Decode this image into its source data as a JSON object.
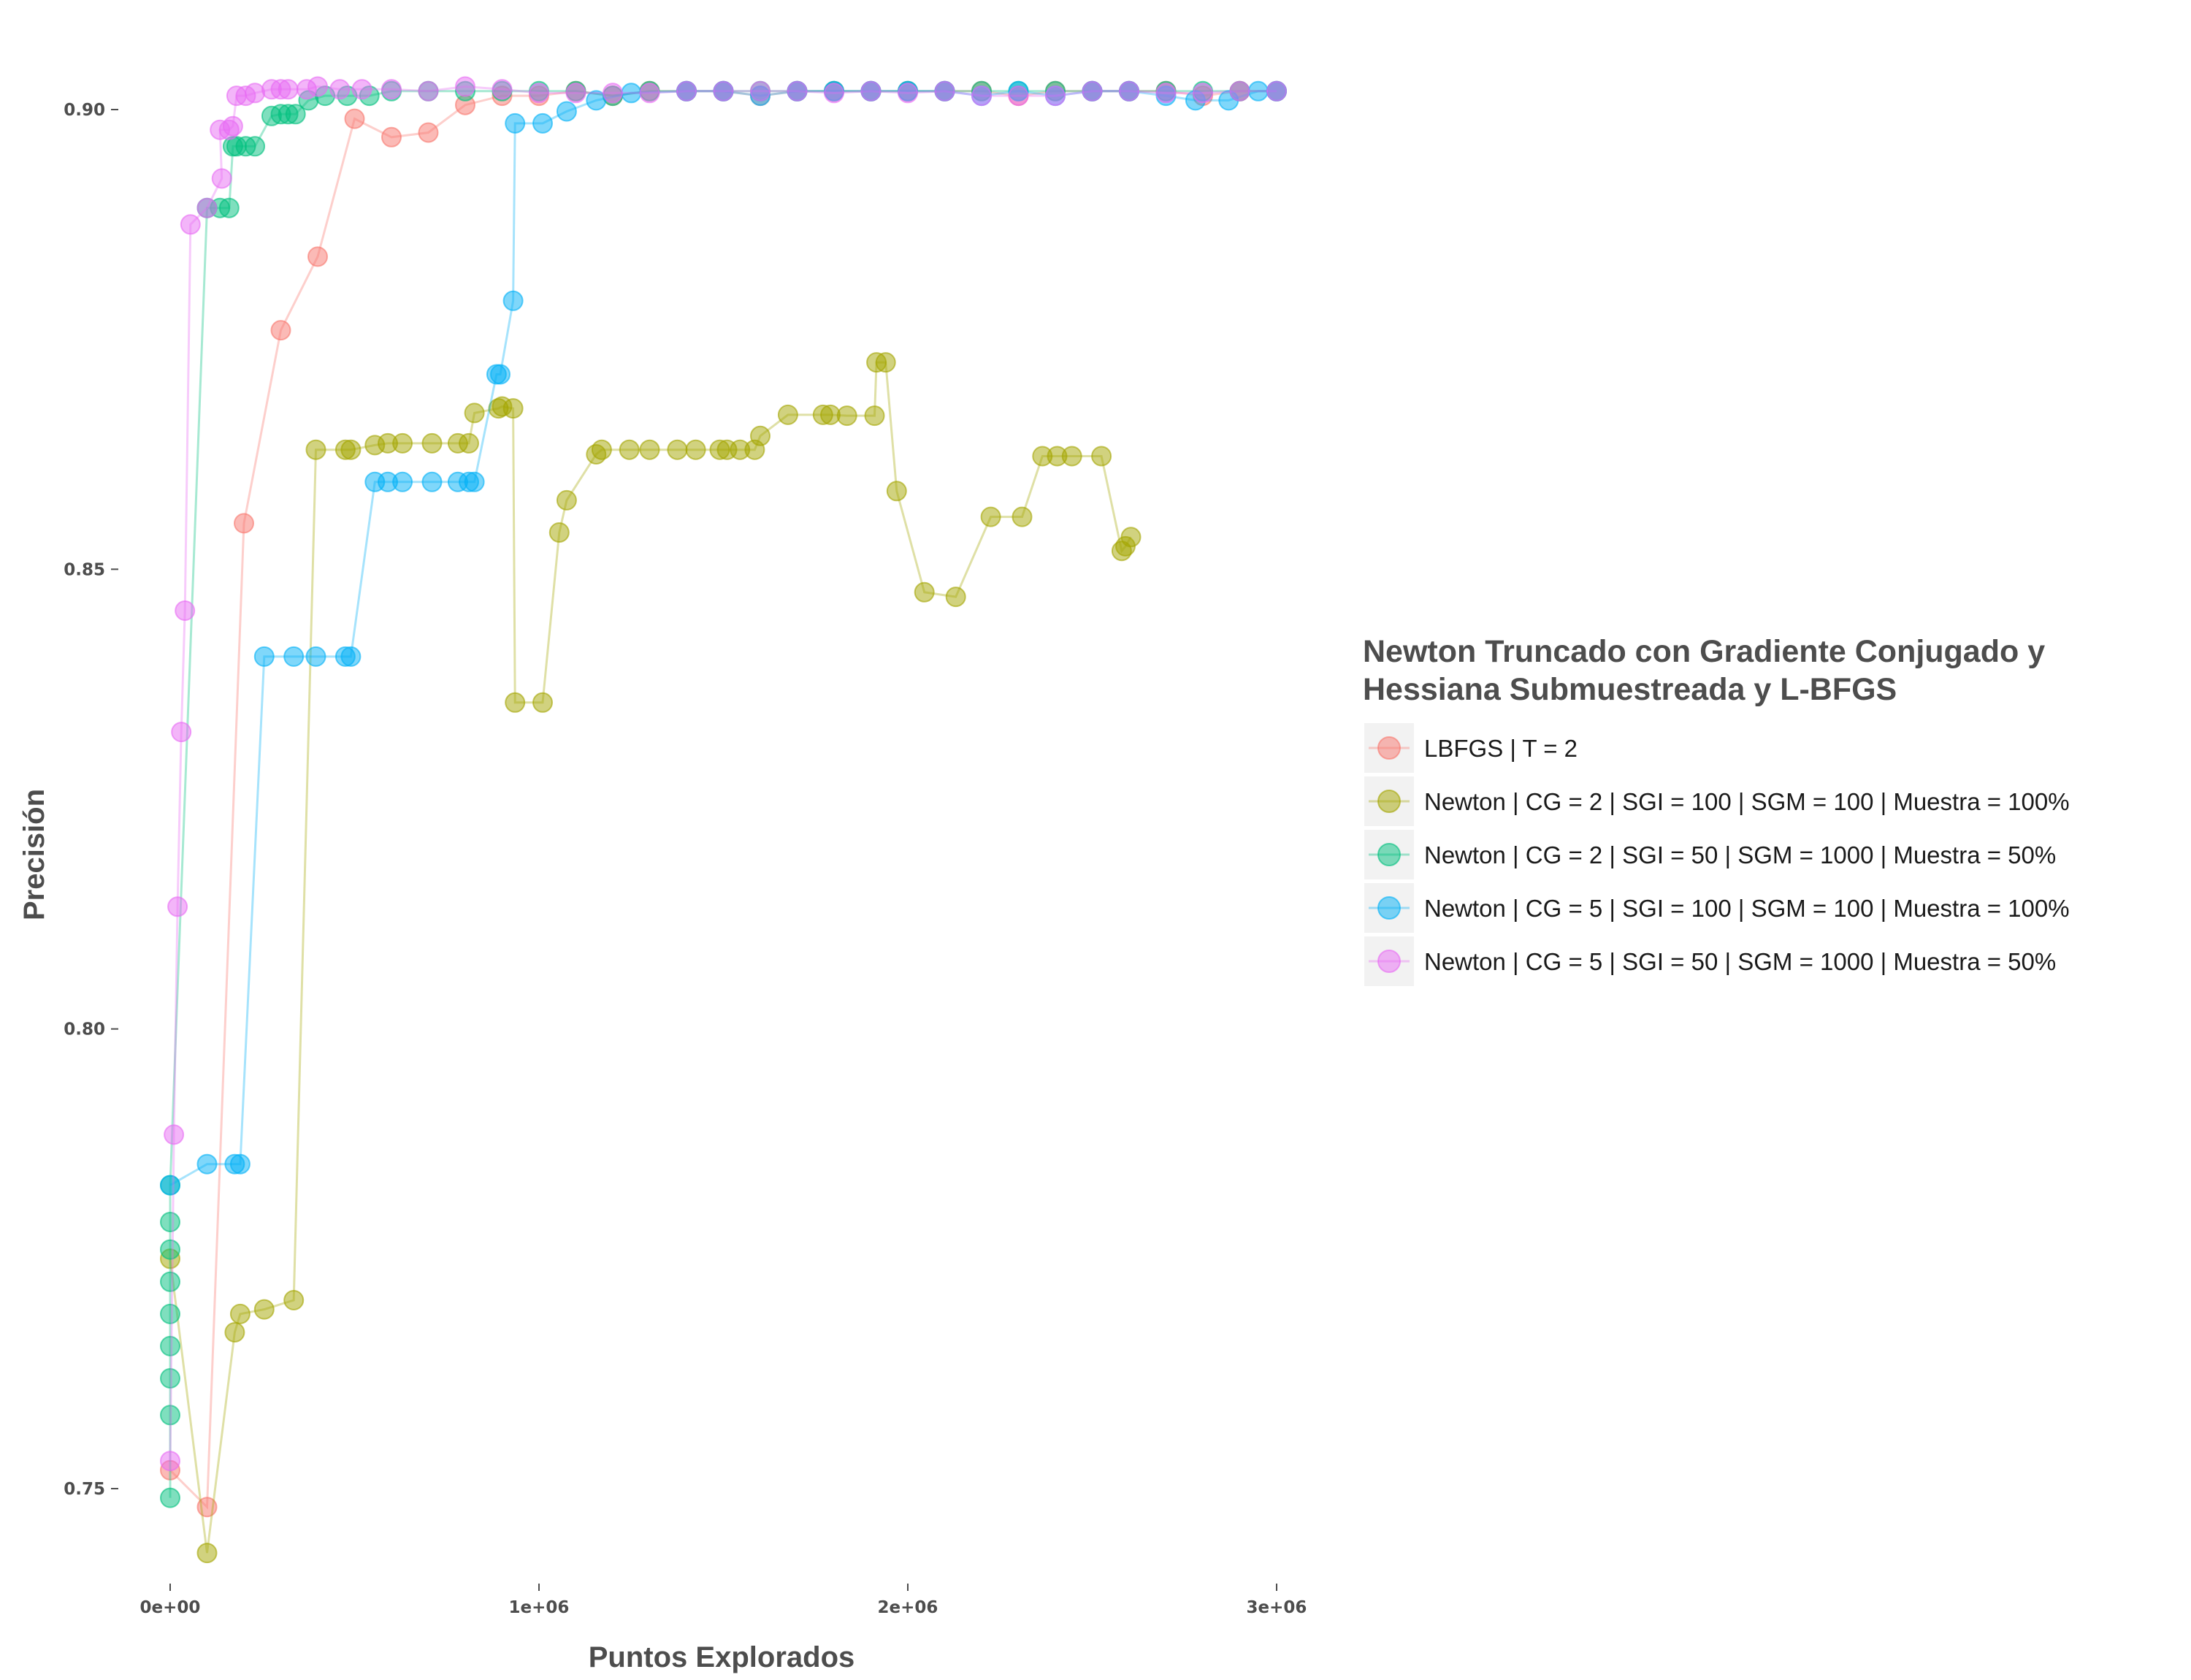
{
  "chart_data": {
    "type": "line",
    "title": "",
    "xlabel": "Puntos Explorados",
    "ylabel": "Precisión",
    "xlim": [
      -120000,
      3120000
    ],
    "ylim": [
      0.737,
      0.911
    ],
    "x_ticks": [
      {
        "value": 0,
        "label": "0e+00"
      },
      {
        "value": 1000000,
        "label": "1e+06"
      },
      {
        "value": 2000000,
        "label": "2e+06"
      },
      {
        "value": 3000000,
        "label": "3e+06"
      }
    ],
    "y_ticks": [
      {
        "value": 0.75,
        "label": "0.75"
      },
      {
        "value": 0.8,
        "label": "0.80"
      },
      {
        "value": 0.85,
        "label": "0.85"
      },
      {
        "value": 0.9,
        "label": "0.90"
      }
    ],
    "grid": false,
    "legend": {
      "title_lines": [
        "Newton Truncado con Gradiente Conjugado y",
        "Hessiana Submuestreada y L-BFGS"
      ],
      "position": "right"
    },
    "series": [
      {
        "name": "LBFGS  | T = 2",
        "color": "#F8766D",
        "points": [
          [
            0,
            0.752
          ],
          [
            100000,
            0.748
          ],
          [
            200000,
            0.855
          ],
          [
            300000,
            0.876
          ],
          [
            400000,
            0.884
          ],
          [
            500000,
            0.899
          ],
          [
            600000,
            0.897
          ],
          [
            700000,
            0.8975
          ],
          [
            800000,
            0.9005
          ],
          [
            900000,
            0.9015
          ],
          [
            1000000,
            0.9015
          ],
          [
            1100000,
            0.902
          ],
          [
            1200000,
            0.9015
          ],
          [
            1300000,
            0.902
          ],
          [
            1400000,
            0.902
          ],
          [
            1500000,
            0.902
          ],
          [
            1600000,
            0.9015
          ],
          [
            1700000,
            0.902
          ],
          [
            1800000,
            0.902
          ],
          [
            1900000,
            0.902
          ],
          [
            2000000,
            0.902
          ],
          [
            2100000,
            0.902
          ],
          [
            2200000,
            0.902
          ],
          [
            2300000,
            0.9015
          ],
          [
            2400000,
            0.902
          ],
          [
            2500000,
            0.902
          ],
          [
            2600000,
            0.902
          ],
          [
            2700000,
            0.902
          ],
          [
            2800000,
            0.9015
          ],
          [
            2900000,
            0.902
          ],
          [
            3000000,
            0.902
          ]
        ]
      },
      {
        "name": "Newton | CG = 2 | SGI = 100 | SGM = 100  | Muestra = 100%",
        "color": "#A3A500",
        "points": [
          [
            0,
            0.775
          ],
          [
            100000,
            0.743
          ],
          [
            175000,
            0.767
          ],
          [
            190000,
            0.769
          ],
          [
            255000,
            0.7695
          ],
          [
            335000,
            0.7705
          ],
          [
            395000,
            0.863
          ],
          [
            475000,
            0.863
          ],
          [
            490000,
            0.863
          ],
          [
            555000,
            0.8635
          ],
          [
            590000,
            0.8637
          ],
          [
            630000,
            0.8637
          ],
          [
            710000,
            0.8637
          ],
          [
            780000,
            0.8637
          ],
          [
            810000,
            0.8637
          ],
          [
            825000,
            0.867
          ],
          [
            890000,
            0.8675
          ],
          [
            900000,
            0.8677
          ],
          [
            930000,
            0.8675
          ],
          [
            935000,
            0.8355
          ],
          [
            1010000,
            0.8355
          ],
          [
            1055000,
            0.854
          ],
          [
            1075000,
            0.8575
          ],
          [
            1155000,
            0.8625
          ],
          [
            1170000,
            0.863
          ],
          [
            1245000,
            0.863
          ],
          [
            1300000,
            0.863
          ],
          [
            1375000,
            0.863
          ],
          [
            1425000,
            0.863
          ],
          [
            1490000,
            0.863
          ],
          [
            1510000,
            0.863
          ],
          [
            1545000,
            0.863
          ],
          [
            1585000,
            0.863
          ],
          [
            1600000,
            0.8645
          ],
          [
            1675000,
            0.8668
          ],
          [
            1770000,
            0.8668
          ],
          [
            1790000,
            0.8668
          ],
          [
            1835000,
            0.8667
          ],
          [
            1910000,
            0.8667
          ],
          [
            1915000,
            0.8725
          ],
          [
            1940000,
            0.8725
          ],
          [
            1970000,
            0.8585
          ],
          [
            2045000,
            0.8475
          ],
          [
            2130000,
            0.847
          ],
          [
            2225000,
            0.8557
          ],
          [
            2310000,
            0.8557
          ],
          [
            2365000,
            0.8623
          ],
          [
            2405000,
            0.8623
          ],
          [
            2445000,
            0.8623
          ],
          [
            2525000,
            0.8623
          ],
          [
            2580000,
            0.852
          ],
          [
            2590000,
            0.8525
          ],
          [
            2605000,
            0.8535
          ]
        ]
      },
      {
        "name": "Newton | CG = 2 | SGI = 50  | SGM = 1000 | Muestra = 50%",
        "color": "#00BF7D",
        "points": [
          [
            0,
            0.749
          ],
          [
            0,
            0.758
          ],
          [
            0,
            0.762
          ],
          [
            0,
            0.7655
          ],
          [
            0,
            0.769
          ],
          [
            0,
            0.7725
          ],
          [
            0,
            0.776
          ],
          [
            0,
            0.779
          ],
          [
            0,
            0.783
          ],
          [
            100000,
            0.8893
          ],
          [
            135000,
            0.8893
          ],
          [
            160000,
            0.8893
          ],
          [
            170000,
            0.896
          ],
          [
            180000,
            0.896
          ],
          [
            205000,
            0.896
          ],
          [
            230000,
            0.896
          ],
          [
            275000,
            0.8993
          ],
          [
            300000,
            0.8995
          ],
          [
            320000,
            0.8995
          ],
          [
            340000,
            0.8995
          ],
          [
            375000,
            0.901
          ],
          [
            420000,
            0.9015
          ],
          [
            480000,
            0.9015
          ],
          [
            540000,
            0.9015
          ],
          [
            600000,
            0.902
          ],
          [
            700000,
            0.902
          ],
          [
            800000,
            0.902
          ],
          [
            900000,
            0.902
          ],
          [
            1000000,
            0.902
          ],
          [
            1100000,
            0.902
          ],
          [
            1200000,
            0.9015
          ],
          [
            1300000,
            0.902
          ],
          [
            1400000,
            0.902
          ],
          [
            1500000,
            0.902
          ],
          [
            1600000,
            0.902
          ],
          [
            1700000,
            0.902
          ],
          [
            1800000,
            0.902
          ],
          [
            1900000,
            0.902
          ],
          [
            2000000,
            0.902
          ],
          [
            2100000,
            0.902
          ],
          [
            2200000,
            0.902
          ],
          [
            2300000,
            0.902
          ],
          [
            2400000,
            0.902
          ],
          [
            2500000,
            0.902
          ],
          [
            2600000,
            0.902
          ],
          [
            2700000,
            0.902
          ],
          [
            2800000,
            0.902
          ],
          [
            2900000,
            0.902
          ],
          [
            3000000,
            0.902
          ]
        ]
      },
      {
        "name": "Newton | CG = 5 | SGI = 100 | SGM = 100  | Muestra = 100%",
        "color": "#00B0F6",
        "points": [
          [
            0,
            0.783
          ],
          [
            100000,
            0.7853
          ],
          [
            175000,
            0.7853
          ],
          [
            190000,
            0.7853
          ],
          [
            255000,
            0.8405
          ],
          [
            335000,
            0.8405
          ],
          [
            395000,
            0.8405
          ],
          [
            475000,
            0.8405
          ],
          [
            490000,
            0.8405
          ],
          [
            555000,
            0.8595
          ],
          [
            590000,
            0.8595
          ],
          [
            630000,
            0.8595
          ],
          [
            710000,
            0.8595
          ],
          [
            780000,
            0.8595
          ],
          [
            810000,
            0.8595
          ],
          [
            825000,
            0.8595
          ],
          [
            885000,
            0.8712
          ],
          [
            895000,
            0.8712
          ],
          [
            930000,
            0.8792
          ],
          [
            935000,
            0.8985
          ],
          [
            1010000,
            0.8985
          ],
          [
            1075000,
            0.8998
          ],
          [
            1155000,
            0.901
          ],
          [
            1250000,
            0.9018
          ],
          [
            1400000,
            0.902
          ],
          [
            1500000,
            0.902
          ],
          [
            1600000,
            0.9015
          ],
          [
            1700000,
            0.902
          ],
          [
            1800000,
            0.902
          ],
          [
            1900000,
            0.902
          ],
          [
            2000000,
            0.902
          ],
          [
            2100000,
            0.902
          ],
          [
            2200000,
            0.9015
          ],
          [
            2300000,
            0.902
          ],
          [
            2400000,
            0.9015
          ],
          [
            2500000,
            0.902
          ],
          [
            2600000,
            0.902
          ],
          [
            2700000,
            0.9015
          ],
          [
            2780000,
            0.901
          ],
          [
            2870000,
            0.901
          ],
          [
            2950000,
            0.902
          ],
          [
            3000000,
            0.902
          ]
        ]
      },
      {
        "name": "Newton | CG = 5 | SGI = 50  | SGM = 1000 | Muestra = 50%",
        "color": "#E76BF3",
        "points": [
          [
            0,
            0.753
          ],
          [
            10000,
            0.7885
          ],
          [
            20000,
            0.8133
          ],
          [
            30000,
            0.8323
          ],
          [
            40000,
            0.8455
          ],
          [
            55000,
            0.8875
          ],
          [
            100000,
            0.8893
          ],
          [
            140000,
            0.8925
          ],
          [
            135000,
            0.8978
          ],
          [
            160000,
            0.8978
          ],
          [
            170000,
            0.8982
          ],
          [
            180000,
            0.9015
          ],
          [
            205000,
            0.9015
          ],
          [
            230000,
            0.9018
          ],
          [
            275000,
            0.9022
          ],
          [
            300000,
            0.9022
          ],
          [
            320000,
            0.9022
          ],
          [
            370000,
            0.9022
          ],
          [
            400000,
            0.9025
          ],
          [
            460000,
            0.9022
          ],
          [
            520000,
            0.9022
          ],
          [
            600000,
            0.9022
          ],
          [
            700000,
            0.902
          ],
          [
            800000,
            0.9025
          ],
          [
            900000,
            0.9022
          ],
          [
            1000000,
            0.9018
          ],
          [
            1100000,
            0.9018
          ],
          [
            1200000,
            0.9018
          ],
          [
            1300000,
            0.9018
          ],
          [
            1400000,
            0.902
          ],
          [
            1500000,
            0.902
          ],
          [
            1600000,
            0.902
          ],
          [
            1700000,
            0.902
          ],
          [
            1800000,
            0.9018
          ],
          [
            1900000,
            0.902
          ],
          [
            2000000,
            0.9018
          ],
          [
            2100000,
            0.902
          ],
          [
            2200000,
            0.9015
          ],
          [
            2300000,
            0.9015
          ],
          [
            2400000,
            0.9015
          ],
          [
            2500000,
            0.902
          ],
          [
            2600000,
            0.902
          ],
          [
            2700000,
            0.9018
          ],
          [
            2800000,
            0.9018
          ],
          [
            2900000,
            0.902
          ],
          [
            3000000,
            0.902
          ]
        ]
      }
    ]
  }
}
